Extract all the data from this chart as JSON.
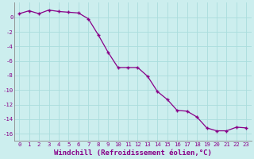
{
  "x": [
    0,
    1,
    2,
    3,
    4,
    5,
    6,
    7,
    8,
    9,
    10,
    11,
    12,
    13,
    14,
    15,
    16,
    17,
    18,
    19,
    20,
    21,
    22,
    23
  ],
  "y": [
    0.5,
    0.9,
    0.5,
    1.0,
    0.8,
    0.7,
    0.6,
    -0.2,
    -2.4,
    -4.8,
    -6.9,
    -6.9,
    -6.9,
    -8.1,
    -10.2,
    -11.3,
    -12.8,
    -12.9,
    -13.7,
    -15.2,
    -15.6,
    -15.6,
    -15.1,
    -15.2
  ],
  "line_color": "#880088",
  "marker": "+",
  "bg_color": "#cceeee",
  "grid_color": "#aadddd",
  "xlabel": "Windchill (Refroidissement éolien,°C)",
  "xlabel_color": "#880088",
  "tick_color": "#880088",
  "axis_color": "#888888",
  "xlim": [
    -0.5,
    23.5
  ],
  "ylim": [
    -17,
    2
  ],
  "yticks": [
    0,
    -2,
    -4,
    -6,
    -8,
    -10,
    -12,
    -14,
    -16
  ],
  "xticks": [
    0,
    1,
    2,
    3,
    4,
    5,
    6,
    7,
    8,
    9,
    10,
    11,
    12,
    13,
    14,
    15,
    16,
    17,
    18,
    19,
    20,
    21,
    22,
    23
  ],
  "tick_fontsize": 5.2,
  "xlabel_fontsize": 6.5,
  "marker_size": 3.5,
  "linewidth": 0.9
}
